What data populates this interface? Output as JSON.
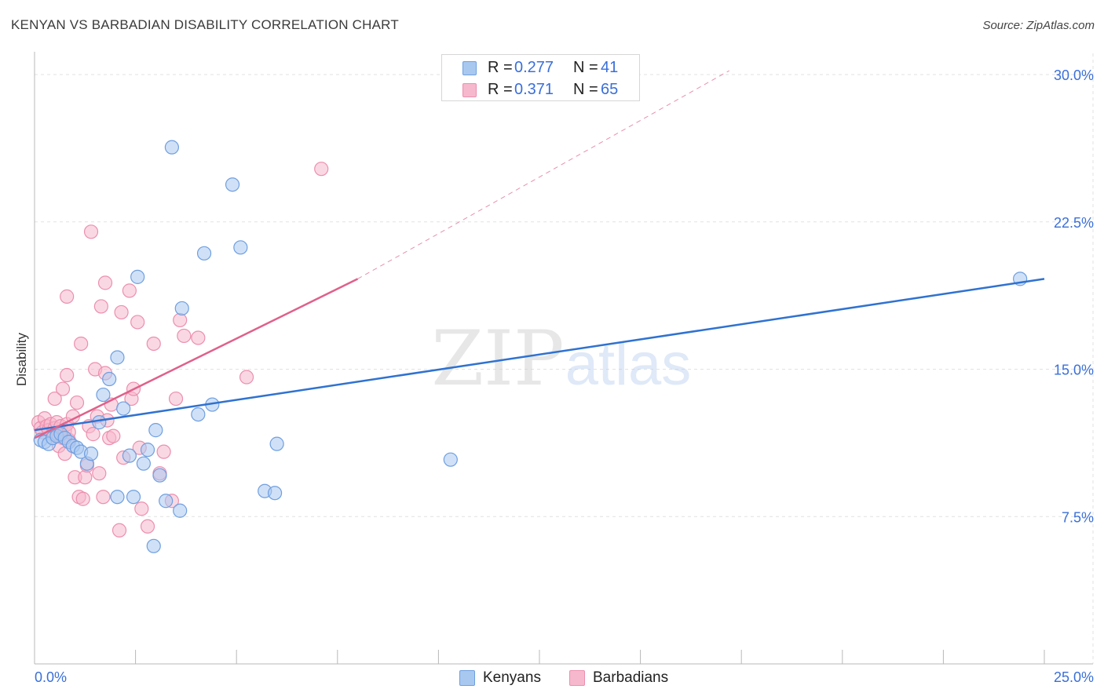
{
  "title": "KENYAN VS BARBADIAN DISABILITY CORRELATION CHART",
  "source": "Source: ZipAtlas.com",
  "watermark": {
    "zip": "ZIP",
    "atlas": "atlas"
  },
  "legend_top": {
    "rows": [
      {
        "r_label": "R =",
        "r_value": "0.277",
        "n_label": "N =",
        "n_value": "41"
      },
      {
        "r_label": "R =",
        "r_value": "0.371",
        "n_label": "N =",
        "n_value": "65"
      }
    ]
  },
  "colors": {
    "kenyan_fill": "#a9c8f0",
    "kenyan_stroke": "#6f9fe0",
    "kenyan_line": "#2f72d0",
    "barbadian_fill": "#f6b8cc",
    "barbadian_stroke": "#ec8fae",
    "barbadian_line": "#e0608a",
    "tick_label": "#3a6fd8",
    "grid": "#e2e2e2"
  },
  "chart_data": {
    "type": "scatter",
    "title": "KENYAN VS BARBADIAN DISABILITY CORRELATION CHART",
    "xlabel": "",
    "ylabel": "Disability",
    "xlim": [
      0,
      25
    ],
    "ylim": [
      0,
      31
    ],
    "x_tick_labels": [
      "0.0%",
      "25.0%"
    ],
    "y_ticks": [
      7.5,
      15.0,
      22.5,
      30.0
    ],
    "y_tick_labels": [
      "7.5%",
      "15.0%",
      "22.5%",
      "30.0%"
    ],
    "grid": true,
    "legend_position": "bottom-center",
    "series": [
      {
        "name": "Kenyans",
        "r": 0.277,
        "n": 41,
        "trend": {
          "x0": 0.0,
          "y0": 11.9,
          "x1": 25.0,
          "y1": 19.6,
          "dashed_extension": false
        },
        "points": [
          [
            0.15,
            11.4
          ],
          [
            0.25,
            11.3
          ],
          [
            0.35,
            11.2
          ],
          [
            0.45,
            11.5
          ],
          [
            0.55,
            11.6
          ],
          [
            0.65,
            11.7
          ],
          [
            0.75,
            11.5
          ],
          [
            0.85,
            11.3
          ],
          [
            0.95,
            11.1
          ],
          [
            1.05,
            11.0
          ],
          [
            1.15,
            10.8
          ],
          [
            1.3,
            10.2
          ],
          [
            1.4,
            10.7
          ],
          [
            1.6,
            12.3
          ],
          [
            1.7,
            13.7
          ],
          [
            1.85,
            14.5
          ],
          [
            2.05,
            15.6
          ],
          [
            2.2,
            13.0
          ],
          [
            2.35,
            10.6
          ],
          [
            2.55,
            19.7
          ],
          [
            2.7,
            10.2
          ],
          [
            2.8,
            10.9
          ],
          [
            3.0,
            11.9
          ],
          [
            3.1,
            9.6
          ],
          [
            3.25,
            8.3
          ],
          [
            3.4,
            26.3
          ],
          [
            3.6,
            7.8
          ],
          [
            3.65,
            18.1
          ],
          [
            4.05,
            12.7
          ],
          [
            4.2,
            20.9
          ],
          [
            4.4,
            13.2
          ],
          [
            4.9,
            24.4
          ],
          [
            5.1,
            21.2
          ],
          [
            5.7,
            8.8
          ],
          [
            5.95,
            8.7
          ],
          [
            6.0,
            11.2
          ],
          [
            10.3,
            10.4
          ],
          [
            24.4,
            19.6
          ],
          [
            2.05,
            8.5
          ],
          [
            2.45,
            8.5
          ],
          [
            2.95,
            6.0
          ]
        ]
      },
      {
        "name": "Barbadians",
        "r": 0.371,
        "n": 65,
        "trend": {
          "x0": 0.0,
          "y0": 11.5,
          "x1": 8.0,
          "y1": 19.6,
          "dashed_extension": true,
          "dash_x1": 17.2,
          "dash_y1": 30.2
        },
        "points": [
          [
            0.1,
            12.3
          ],
          [
            0.15,
            12.0
          ],
          [
            0.2,
            11.8
          ],
          [
            0.25,
            12.5
          ],
          [
            0.3,
            12.1
          ],
          [
            0.35,
            11.9
          ],
          [
            0.4,
            12.2
          ],
          [
            0.45,
            11.7
          ],
          [
            0.5,
            12.0
          ],
          [
            0.55,
            12.3
          ],
          [
            0.6,
            11.6
          ],
          [
            0.65,
            12.1
          ],
          [
            0.7,
            11.5
          ],
          [
            0.75,
            11.9
          ],
          [
            0.8,
            12.2
          ],
          [
            0.85,
            11.4
          ],
          [
            0.5,
            13.5
          ],
          [
            0.6,
            11.1
          ],
          [
            0.7,
            14.0
          ],
          [
            0.75,
            10.7
          ],
          [
            0.8,
            14.7
          ],
          [
            0.8,
            18.7
          ],
          [
            0.85,
            11.8
          ],
          [
            0.95,
            12.6
          ],
          [
            1.0,
            9.5
          ],
          [
            1.05,
            13.3
          ],
          [
            1.1,
            8.5
          ],
          [
            1.15,
            16.3
          ],
          [
            1.2,
            8.4
          ],
          [
            1.25,
            9.5
          ],
          [
            1.3,
            10.1
          ],
          [
            1.35,
            12.1
          ],
          [
            1.4,
            22.0
          ],
          [
            1.45,
            11.7
          ],
          [
            1.5,
            15.0
          ],
          [
            1.55,
            12.6
          ],
          [
            1.6,
            9.7
          ],
          [
            1.65,
            18.2
          ],
          [
            1.7,
            8.5
          ],
          [
            1.75,
            19.4
          ],
          [
            1.75,
            14.8
          ],
          [
            1.8,
            12.4
          ],
          [
            1.85,
            11.5
          ],
          [
            1.9,
            13.2
          ],
          [
            1.95,
            11.6
          ],
          [
            2.1,
            6.8
          ],
          [
            2.15,
            17.9
          ],
          [
            2.2,
            10.5
          ],
          [
            2.35,
            19.0
          ],
          [
            2.4,
            13.5
          ],
          [
            2.45,
            14.0
          ],
          [
            2.55,
            17.4
          ],
          [
            2.6,
            11.0
          ],
          [
            2.65,
            7.9
          ],
          [
            2.8,
            7.0
          ],
          [
            2.95,
            16.3
          ],
          [
            3.1,
            9.7
          ],
          [
            3.2,
            10.8
          ],
          [
            3.4,
            8.3
          ],
          [
            3.5,
            13.5
          ],
          [
            3.6,
            17.5
          ],
          [
            3.7,
            16.7
          ],
          [
            4.05,
            16.6
          ],
          [
            5.25,
            14.6
          ],
          [
            7.1,
            25.2
          ]
        ]
      }
    ]
  },
  "legend_bottom": {
    "items": [
      "Kenyans",
      "Barbadians"
    ]
  }
}
